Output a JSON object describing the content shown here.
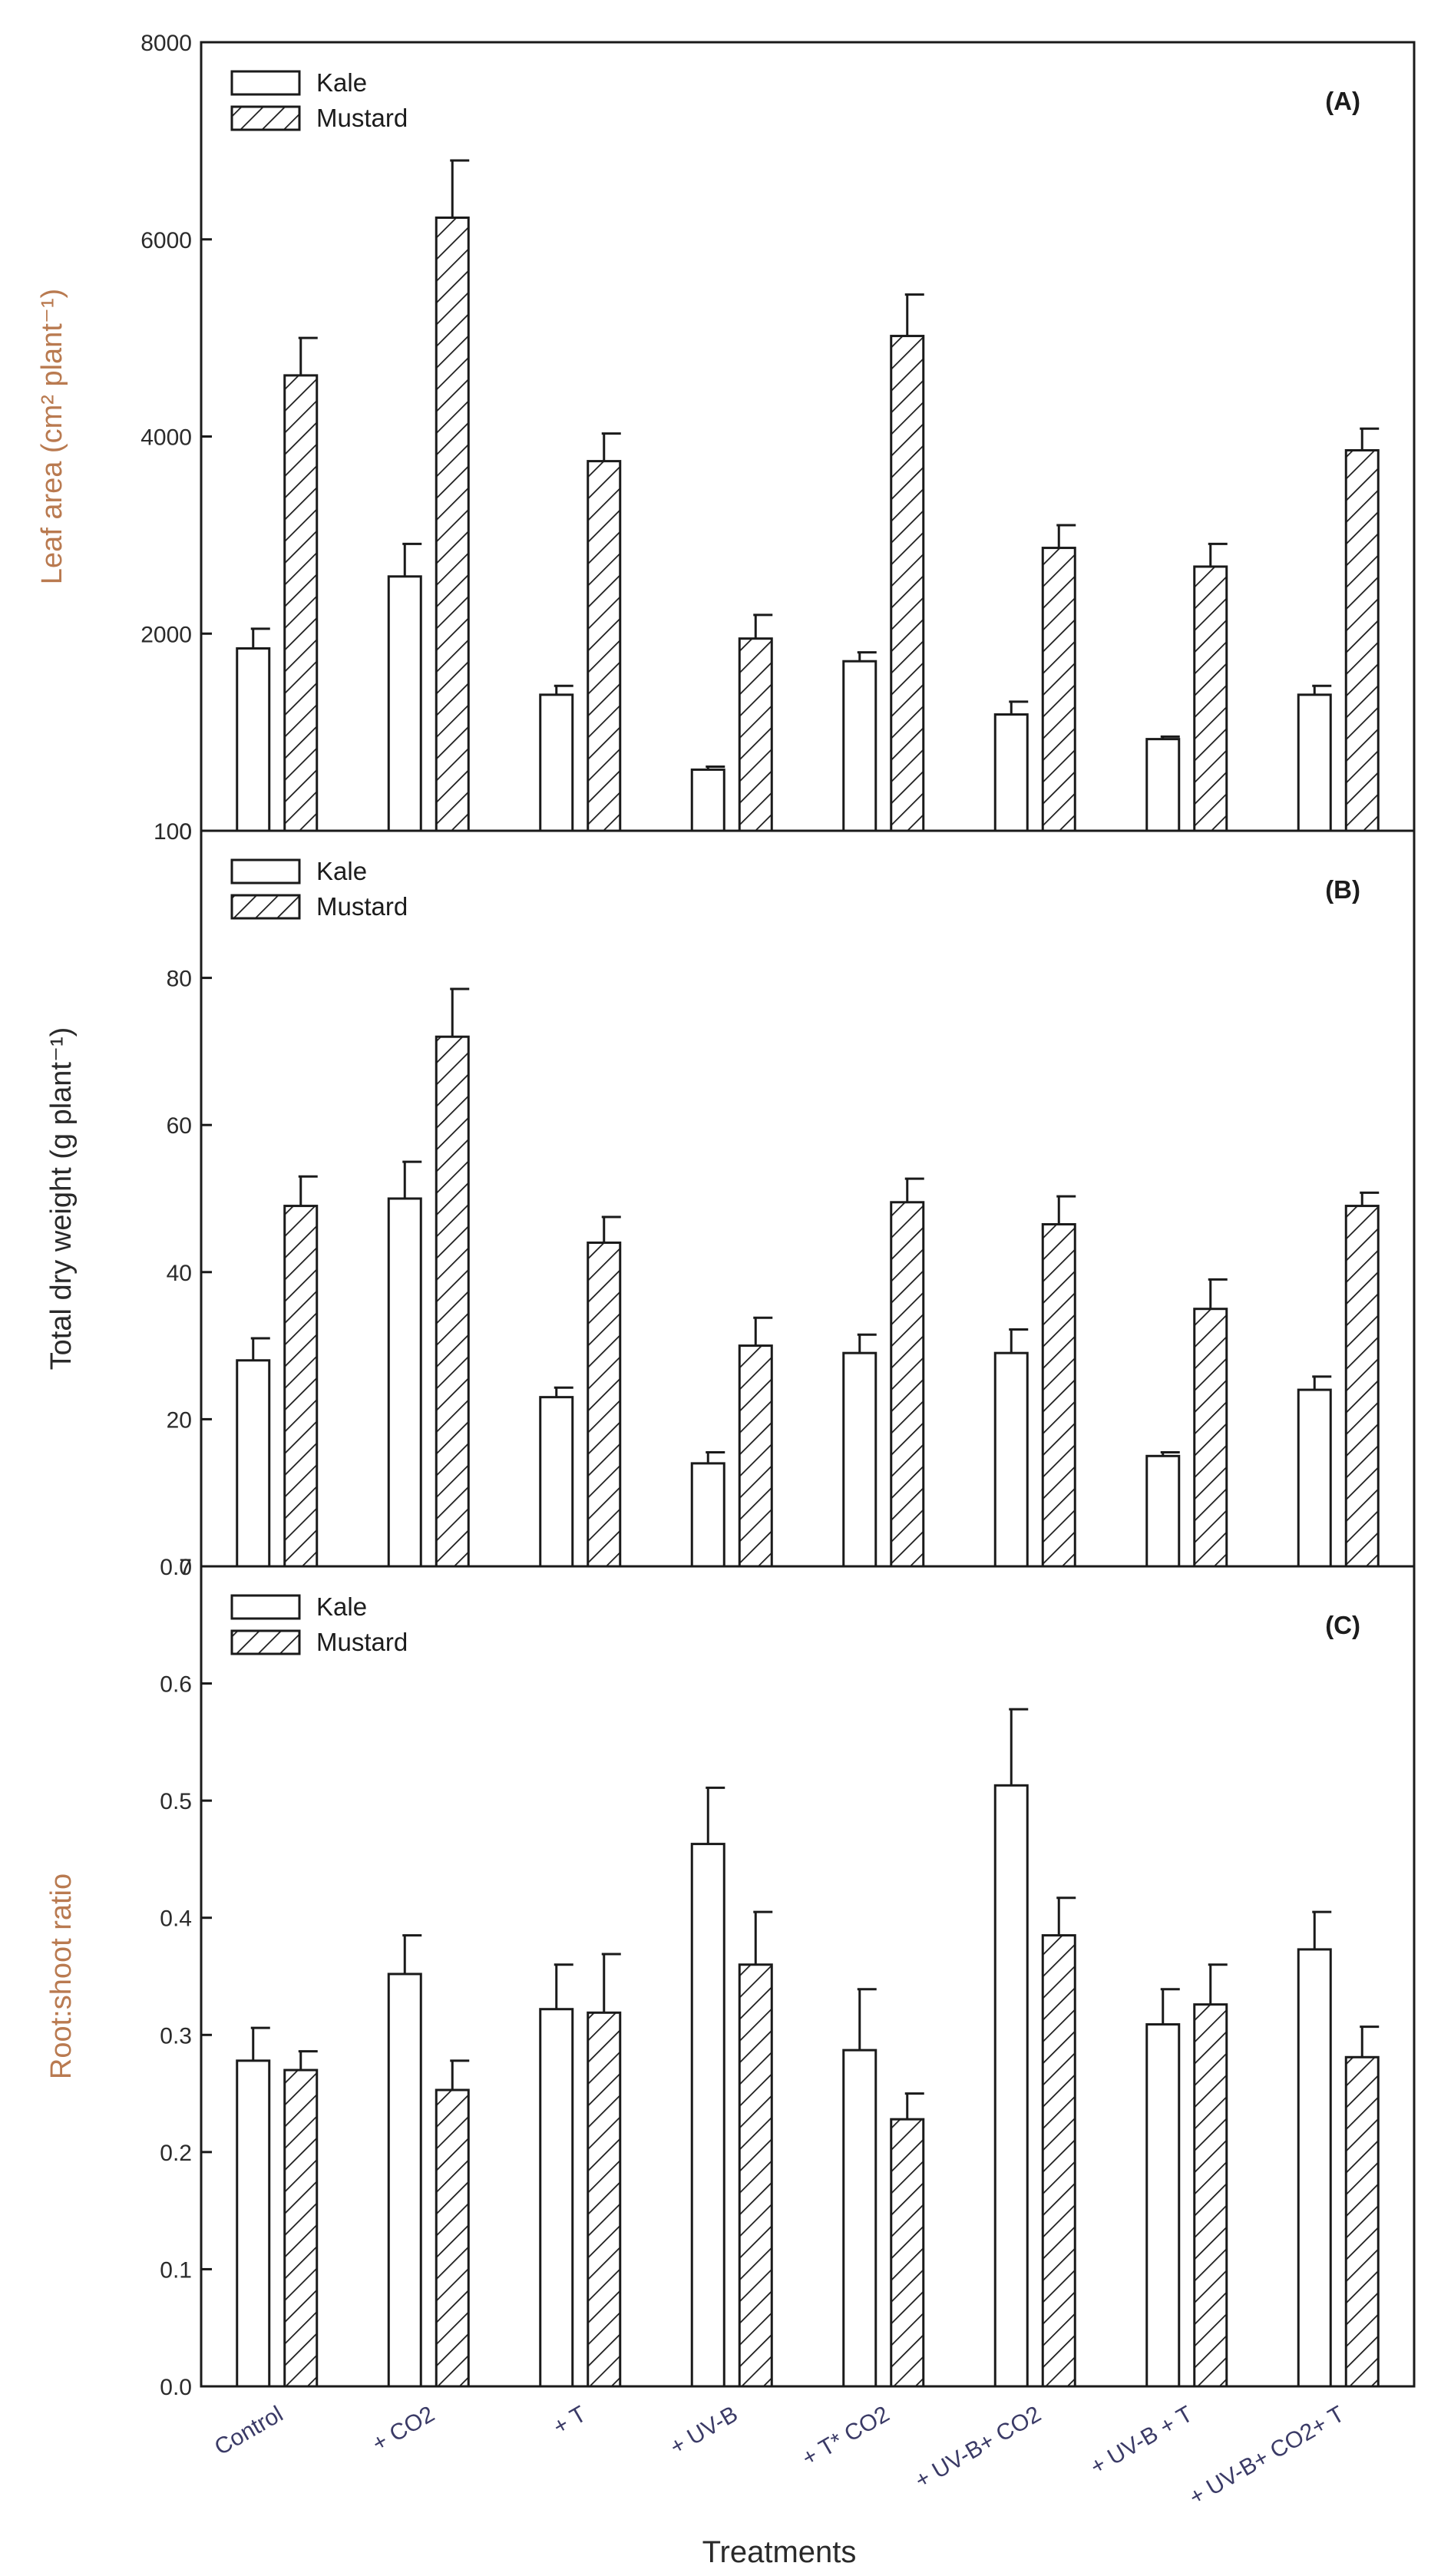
{
  "figure": {
    "x_title": "Treatments",
    "categories": [
      "Control",
      "+ CO2",
      "+ T",
      "+ UV-B",
      "+ T* CO2",
      "+ UV-B+ CO2",
      "+ UV-B + T",
      "+ UV-B+ CO2+ T"
    ],
    "series_names": [
      "Kale",
      "Mustard"
    ],
    "colors": {
      "axis": "#1a1a1a",
      "bar_stroke": "#1a1a1a",
      "bar_fill": "#ffffff",
      "ylabel_chart_a": "#b97a50",
      "ylabel_chart_b": "#2a2a2a",
      "ylabel_chart_c": "#b97a50",
      "category_label": "#3a3a66"
    }
  },
  "chart_data": [
    {
      "type": "bar",
      "panel_label": "(A)",
      "ylabel": "Leaf area (cm² plant⁻¹)",
      "ylim": [
        0,
        8000
      ],
      "yticks": [
        0,
        2000,
        4000,
        6000,
        8000
      ],
      "ytick_labels": [
        "0",
        "2000",
        "4000",
        "6000",
        "8000"
      ],
      "legend_position": "top-left",
      "categories": [
        "Control",
        "+ CO2",
        "+ T",
        "+ UV-B",
        "+ T* CO2",
        "+ UV-B+ CO2",
        "+ UV-B + T",
        "+ UV-B+ CO2+ T"
      ],
      "series": [
        {
          "name": "Kale",
          "pattern": "open",
          "values": [
            1850,
            2580,
            1380,
            620,
            1720,
            1180,
            930,
            1380
          ],
          "errors": [
            200,
            330,
            90,
            30,
            90,
            130,
            25,
            90
          ]
        },
        {
          "name": "Mustard",
          "pattern": "hatched",
          "values": [
            4620,
            6220,
            3750,
            1950,
            5020,
            2870,
            2680,
            3860
          ],
          "errors": [
            380,
            580,
            280,
            240,
            420,
            230,
            230,
            220
          ]
        }
      ]
    },
    {
      "type": "bar",
      "panel_label": "(B)",
      "ylabel": "Total dry weight (g plant⁻¹)",
      "ylim": [
        0,
        100
      ],
      "yticks": [
        0,
        20,
        40,
        60,
        80,
        100
      ],
      "ytick_labels": [
        "0",
        "20",
        "40",
        "60",
        "80",
        "100"
      ],
      "legend_position": "top-left",
      "categories": [
        "Control",
        "+ CO2",
        "+ T",
        "+ UV-B",
        "+ T* CO2",
        "+ UV-B+ CO2",
        "+ UV-B + T",
        "+ UV-B+ CO2+ T"
      ],
      "series": [
        {
          "name": "Kale",
          "pattern": "open",
          "values": [
            28,
            50,
            23,
            14,
            29,
            29,
            15,
            24
          ],
          "errors": [
            3,
            5,
            1.3,
            1.5,
            2.5,
            3.2,
            0.5,
            1.8
          ]
        },
        {
          "name": "Mustard",
          "pattern": "hatched",
          "values": [
            49,
            72,
            44,
            30,
            49.5,
            46.5,
            35,
            49
          ],
          "errors": [
            4,
            6.5,
            3.5,
            3.8,
            3.2,
            3.8,
            4,
            1.8
          ]
        }
      ]
    },
    {
      "type": "bar",
      "panel_label": "(C)",
      "ylabel": "Root:shoot ratio",
      "ylim": [
        0,
        0.7
      ],
      "yticks": [
        0,
        0.1,
        0.2,
        0.3,
        0.4,
        0.5,
        0.6,
        0.7
      ],
      "ytick_labels": [
        "0.0",
        "0.1",
        "0.2",
        "0.3",
        "0.4",
        "0.5",
        "0.6",
        "0.7"
      ],
      "legend_position": "top-left",
      "categories": [
        "Control",
        "+ CO2",
        "+ T",
        "+ UV-B",
        "+ T* CO2",
        "+ UV-B+ CO2",
        "+ UV-B + T",
        "+ UV-B+ CO2+ T"
      ],
      "series": [
        {
          "name": "Kale",
          "pattern": "open",
          "values": [
            0.278,
            0.352,
            0.322,
            0.463,
            0.287,
            0.513,
            0.309,
            0.373
          ],
          "errors": [
            0.028,
            0.033,
            0.038,
            0.048,
            0.052,
            0.065,
            0.03,
            0.032
          ]
        },
        {
          "name": "Mustard",
          "pattern": "hatched",
          "values": [
            0.27,
            0.253,
            0.319,
            0.36,
            0.228,
            0.385,
            0.326,
            0.281
          ],
          "errors": [
            0.016,
            0.025,
            0.05,
            0.045,
            0.022,
            0.032,
            0.034,
            0.026
          ]
        }
      ]
    }
  ]
}
